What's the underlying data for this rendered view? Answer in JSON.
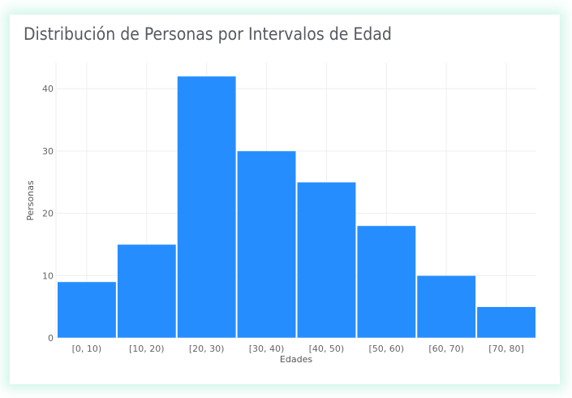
{
  "card": {
    "title": "Distribución de Personas por Intervalos de Edad"
  },
  "colors": {
    "bar": "#228bff",
    "grid": "#eeeeee",
    "glow": "#d9f6ea"
  },
  "chart_data": {
    "type": "bar",
    "title": "Distribución de Personas por Intervalos de Edad",
    "xlabel": "Edades",
    "ylabel": "Personas",
    "categories": [
      "[0, 10)",
      "[10, 20)",
      "[20, 30)",
      "[30, 40)",
      "[40, 50)",
      "[50, 60)",
      "[60, 70)",
      "[70, 80]"
    ],
    "values": [
      9,
      15,
      42,
      30,
      25,
      18,
      10,
      5
    ],
    "yticks": [
      0,
      10,
      20,
      30,
      40
    ],
    "ylim": [
      0,
      44.2
    ],
    "grid": true,
    "legend": false
  }
}
